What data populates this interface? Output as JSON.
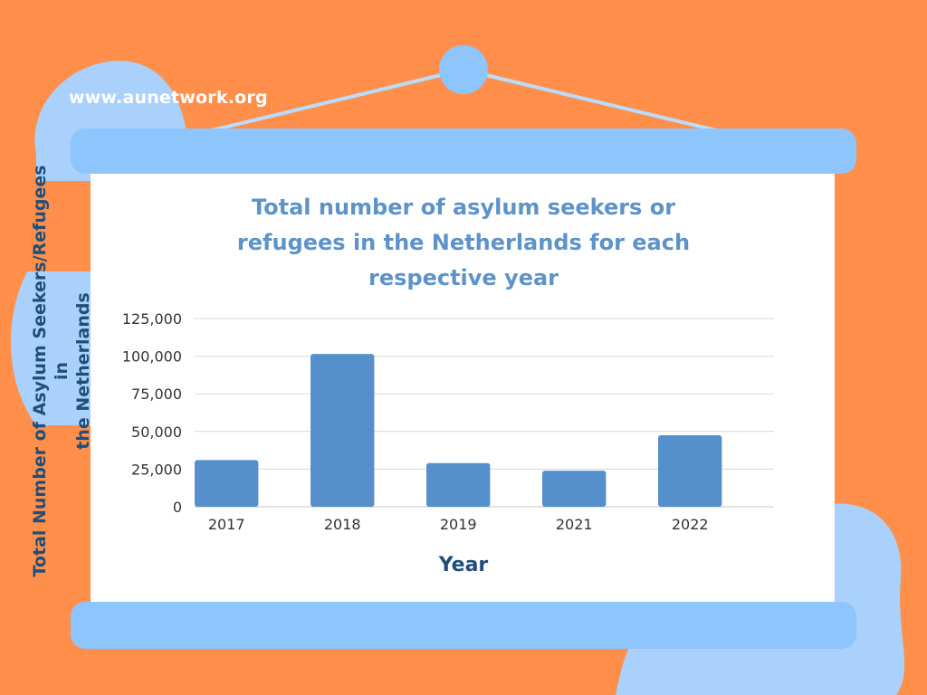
{
  "site": {
    "url": "www.aunetwork.org"
  },
  "colors": {
    "background": "#ff8f4a",
    "accent_light_blue": "#8ec5fc",
    "bar": "#5590cc",
    "title": "#5d93c9",
    "axis_label": "#1f4e79",
    "grid": "#d9d9d9"
  },
  "chart_data": {
    "type": "bar",
    "title": "Total number of asylum seekers or refugees in the Netherlands for each respective year",
    "title_lines": [
      "Total number of asylum seekers or",
      "refugees in the Netherlands for each",
      "respective year"
    ],
    "xlabel": "Year",
    "ylabel": "Total Number of Asylum Seekers/Refugees in the Netherlands",
    "ylabel_lines": [
      "Total Number of Asylum Seekers/Refugees in",
      "the Netherlands"
    ],
    "categories": [
      "2017",
      "2018",
      "2019",
      "2021",
      "2022"
    ],
    "values": [
      31000,
      101500,
      29000,
      24000,
      47500
    ],
    "ylim": [
      0,
      125000
    ],
    "yticks": [
      0,
      25000,
      50000,
      75000,
      100000,
      125000
    ],
    "ytick_labels": [
      "0",
      "25,000",
      "50,000",
      "75,000",
      "100,000",
      "125,000"
    ],
    "grid": true,
    "legend": "none"
  }
}
